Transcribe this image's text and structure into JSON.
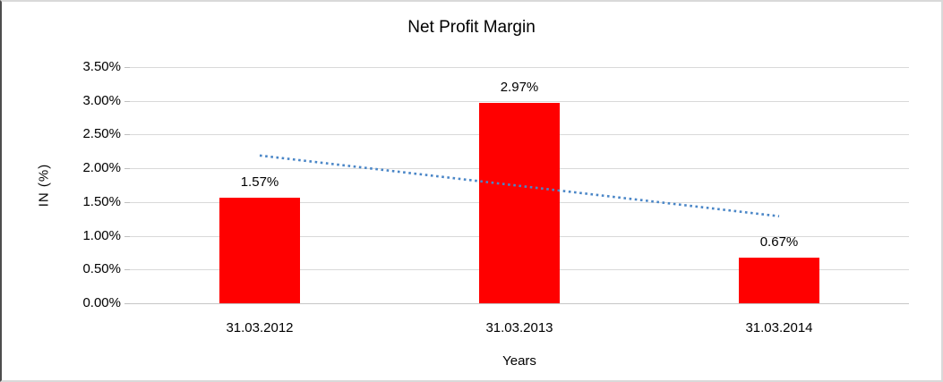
{
  "chart_data": {
    "type": "bar",
    "title": "Net Profit Margin",
    "categories": [
      "31.03.2012",
      "31.03.2013",
      "31.03.2014"
    ],
    "values": [
      1.57,
      2.97,
      0.67
    ],
    "data_labels": [
      "1.57%",
      "2.97%",
      "0.67%"
    ],
    "xlabel": "Years",
    "ylabel": "IN (%)",
    "ylim": [
      0,
      3.5
    ],
    "yticks": [
      0,
      0.5,
      1,
      1.5,
      2,
      2.5,
      3,
      3.5
    ],
    "ytick_labels": [
      "0.00%",
      "0.50%",
      "1.00%",
      "1.50%",
      "2.00%",
      "2.50%",
      "3.00%",
      "3.50%"
    ],
    "grid": true,
    "legend_position": "none",
    "colors": {
      "bar": "#FF0000",
      "trendline_color": "#4A86C7",
      "gridline": "#D9D9D9",
      "axis": "#C6C6C6",
      "text": "#000000",
      "background": "#FFFFFF"
    },
    "trendline": {
      "type": "linear",
      "style": "dotted",
      "start_value": 2.19,
      "end_value": 1.29
    }
  }
}
